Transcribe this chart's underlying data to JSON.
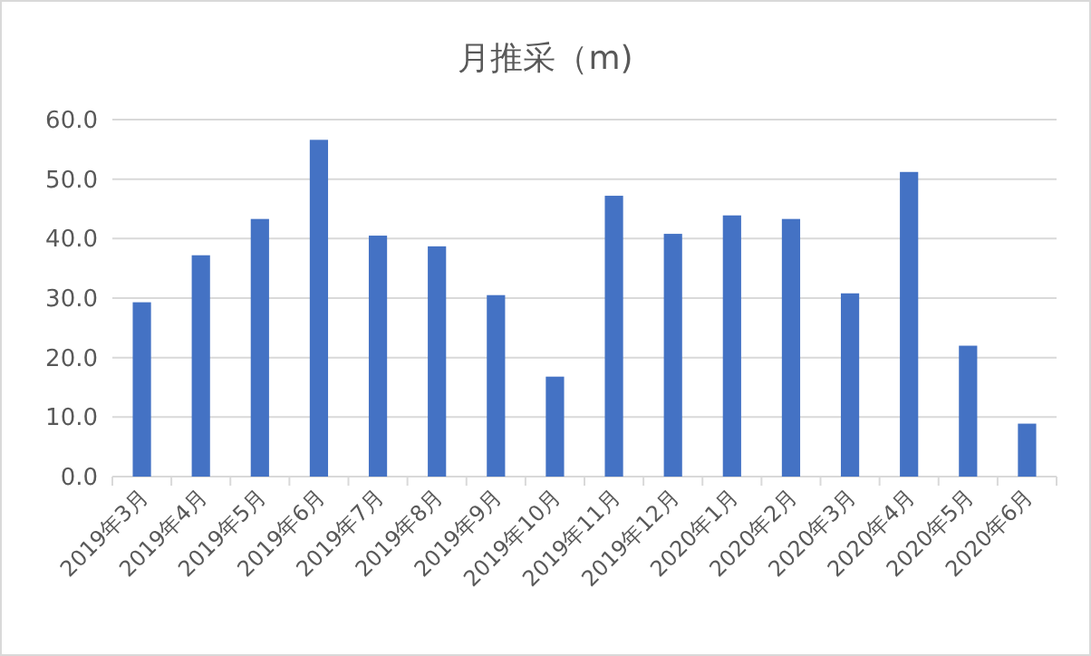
{
  "chart_data": {
    "type": "bar",
    "title": "月推采（m)",
    "categories": [
      "2019年3月",
      "2019年4月",
      "2019年5月",
      "2019年6月",
      "2019年7月",
      "2019年8月",
      "2019年9月",
      "2019年10月",
      "2019年11月",
      "2019年12月",
      "2020年1月",
      "2020年2月",
      "2020年3月",
      "2020年4月",
      "2020年5月",
      "2020年6月"
    ],
    "values": [
      29.3,
      37.2,
      43.3,
      56.6,
      40.5,
      38.7,
      30.5,
      16.8,
      47.2,
      40.8,
      43.9,
      43.3,
      30.8,
      51.2,
      22.0,
      8.9
    ],
    "color": "#4472c4",
    "ylim": [
      0,
      60
    ],
    "yticks": [
      {
        "value": 0,
        "label": "0.0"
      },
      {
        "value": 10,
        "label": "10.0"
      },
      {
        "value": 20,
        "label": "20.0"
      },
      {
        "value": 30,
        "label": "30.0"
      },
      {
        "value": 40,
        "label": "40.0"
      },
      {
        "value": 50,
        "label": "50.0"
      },
      {
        "value": 60,
        "label": "60.0"
      }
    ],
    "grid": "y"
  }
}
